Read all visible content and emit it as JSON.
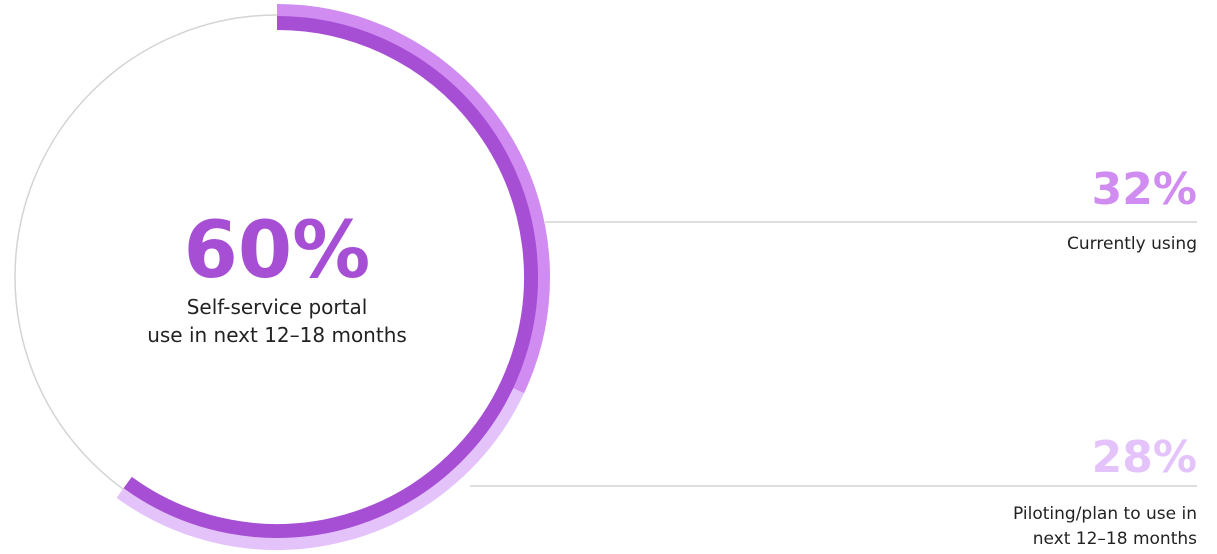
{
  "chart_data": {
    "type": "donut",
    "center_value": 60,
    "center_value_label": "60%",
    "center_color": "#a64fd4",
    "center_text": [
      "Self-service portal",
      "use in next 12–18 months"
    ],
    "categories": [
      "Currently using",
      "Piloting/plan to use in next 12–18 months"
    ],
    "values": [
      32,
      28
    ],
    "value_labels": [
      "32%",
      "28%"
    ],
    "colors": [
      "#d08cf0",
      "#e4c3fb"
    ]
  }
}
